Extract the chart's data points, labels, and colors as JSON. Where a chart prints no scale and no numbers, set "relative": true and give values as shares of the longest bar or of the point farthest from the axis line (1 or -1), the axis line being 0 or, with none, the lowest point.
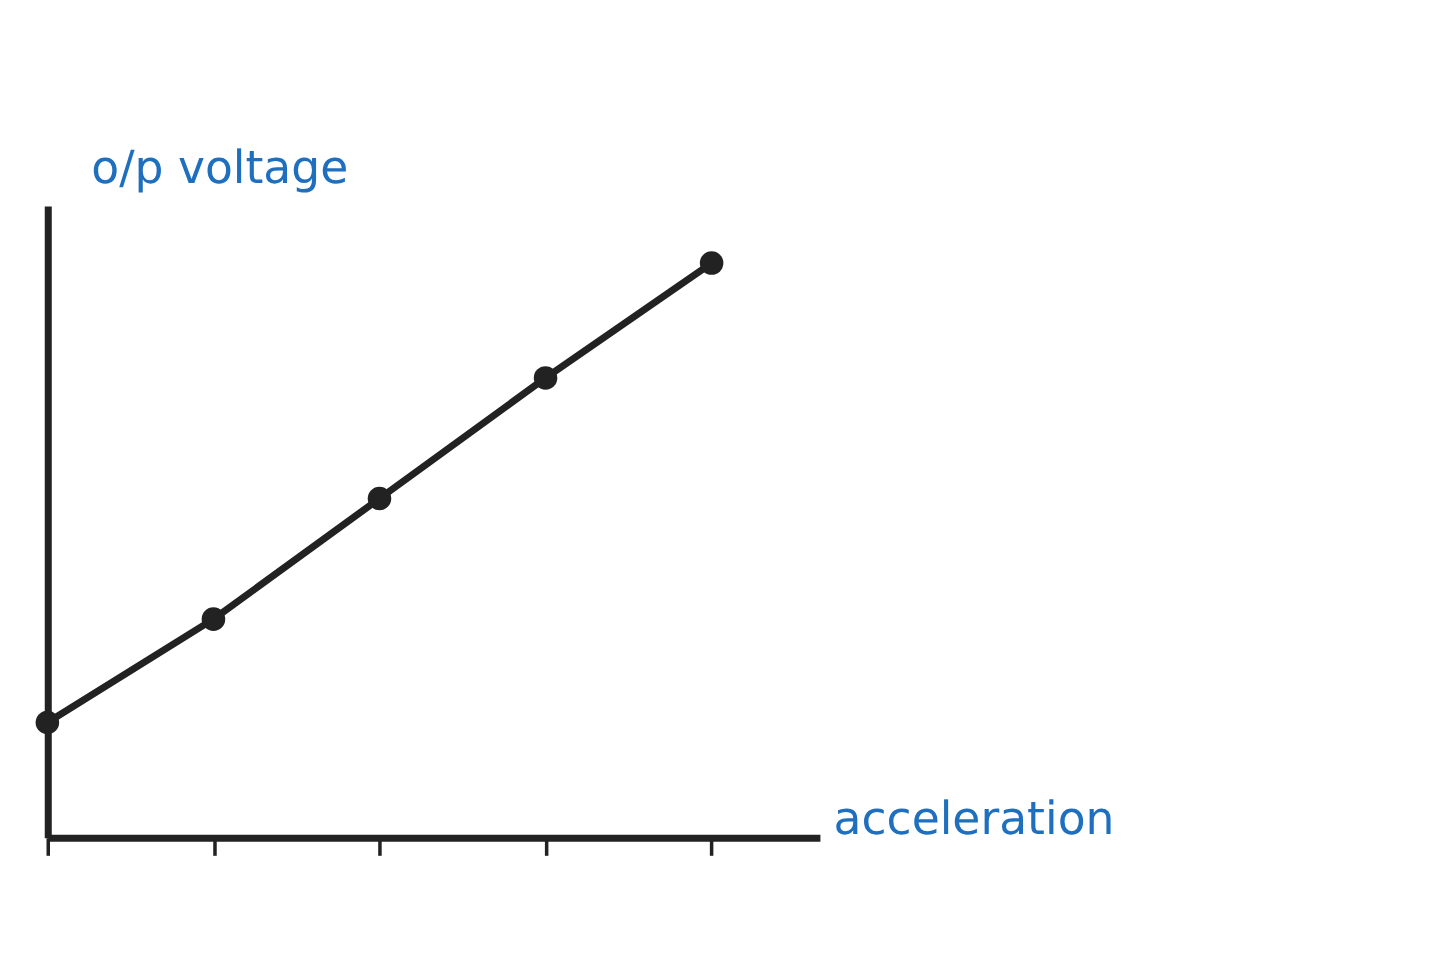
{
  "chart_data": {
    "type": "line",
    "relative": true,
    "categories": [
      null,
      null,
      null,
      null,
      null
    ],
    "series": [
      {
        "color": "#222222",
        "values": [
          0.2,
          0.38,
          0.59,
          0.8,
          1.0
        ]
      }
    ],
    "xlabel": "acceleration",
    "ylabel": "o/p voltage",
    "marker": "circle",
    "line_style": "solid",
    "grid": false,
    "tick_labels": false
  }
}
